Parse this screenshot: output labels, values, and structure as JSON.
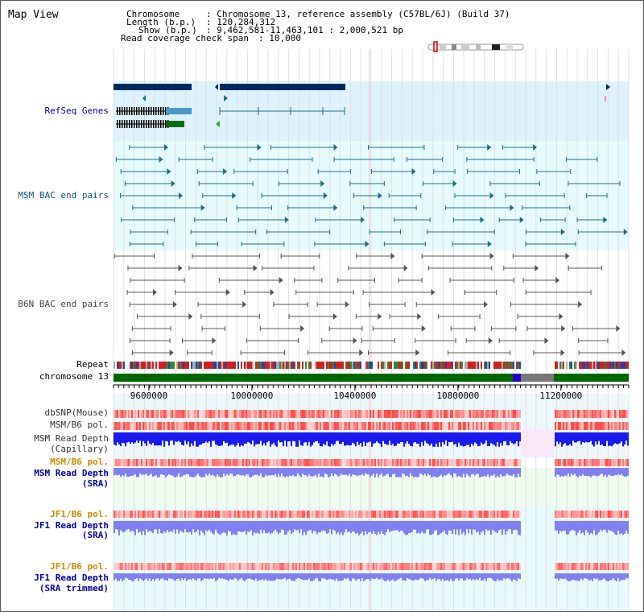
{
  "panel_title": "Map View",
  "header": {
    "chromosome_key": "Chromosome",
    "chromosome_value": ": Chromosome 13, reference assembly (C57BL/6J) (Build 37)",
    "length_key": "Length (b.p.)",
    "length_value": ": 120,284,312",
    "show_key": "Show (b.p.)",
    "show_value": ": 9,462,581-11,463,101 : 2,000,521 bp",
    "coverage_key": "Read coverage check span",
    "coverage_value": ": 10,000"
  },
  "tracks": {
    "refseq": "RefSeq Genes",
    "msm_bac": "MSM BAC end pairs",
    "b6n_bac": "B6N BAC end pairs",
    "repeat": "Repeat",
    "chromosome": "chromosome 13",
    "dbsnp": "dbSNP(Mouse)",
    "msm_pol": "MSM/B6 pol.",
    "msm_depth_cap_1": "MSM Read Depth",
    "msm_depth_cap_2": "(Capillary)",
    "msm_pol_2": "MSM/B6 pol.",
    "msm_depth_sra_1": "MSM Read Depth",
    "msm_depth_sra_2": "(SRA)",
    "jf1_pol": "JF1/B6 pol.",
    "jf1_depth_1": "JF1 Read Depth",
    "jf1_depth_2": "(SRA)",
    "jf1_pol_2": "JF1/B6 pol.",
    "jf1_trim_1": "JF1 Read Depth",
    "jf1_trim_2": "(SRA trimmed)"
  },
  "axis": {
    "start": 9462581,
    "end": 11463101,
    "ticks": [
      "9600000",
      "10000000",
      "10400000",
      "10800000",
      "11200000"
    ]
  },
  "colors": {
    "refseq_bg": "#ddf2fb",
    "msm_bg": "#e6fbfb",
    "gene_dark": "#002a5c",
    "gene_mid": "#4a97c8",
    "gene_green": "#0a6e10",
    "msm_line": "#1d6c8a",
    "b6n_line": "#555555",
    "chrom_green": "#006600",
    "chrom_blue": "#2200cc",
    "chrom_gray": "#777777",
    "snp_red": "#ee3333",
    "depth_blue": "#1a1aee",
    "depth_light": "#8080f0",
    "orange_label": "#d08a00",
    "blue_label": "#0000aa"
  }
}
